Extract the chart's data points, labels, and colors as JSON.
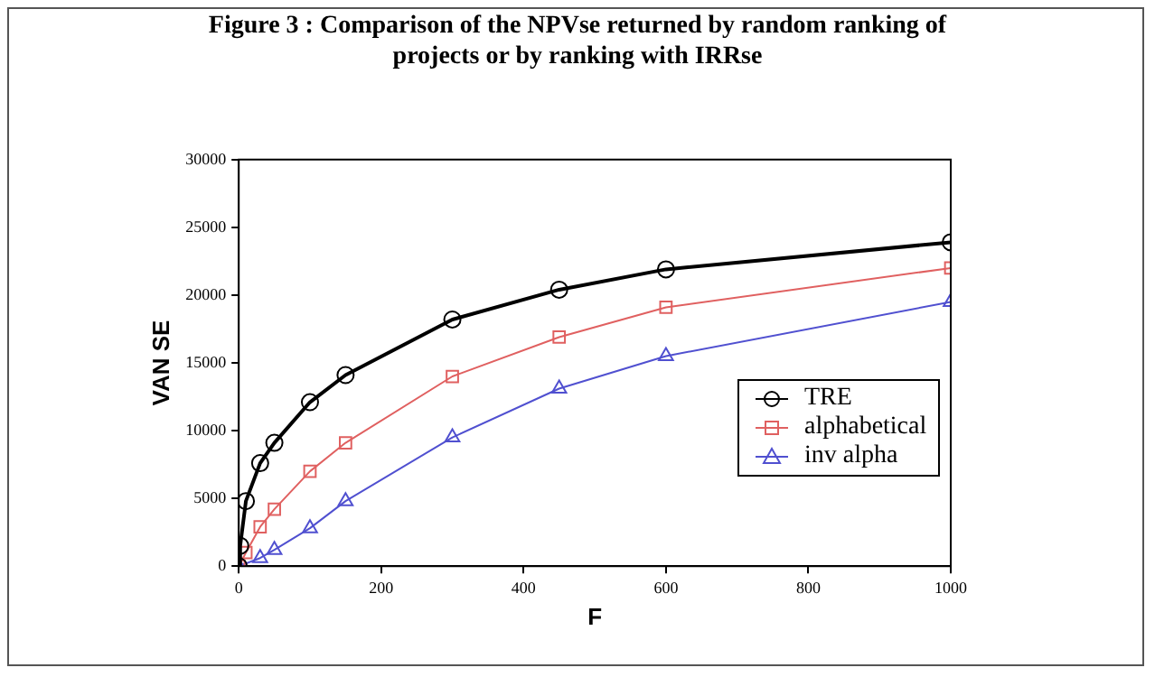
{
  "chart_data": {
    "type": "line",
    "title": "Figure 3 : Comparison of the NPVse returned by random ranking of projects or by ranking with IRRse",
    "xlabel": "F",
    "ylabel": "VAN SE",
    "xlim": [
      0,
      1000
    ],
    "xticks": [
      0,
      200,
      400,
      600,
      800,
      1000
    ],
    "ylim": [
      0,
      30000
    ],
    "yticks": [
      0,
      5000,
      10000,
      15000,
      20000,
      25000,
      30000
    ],
    "grid": false,
    "legend": "bottom right",
    "line_style": "solid",
    "series": [
      {
        "name": "TRE",
        "color": "#000000",
        "marker": "circle",
        "x": [
          0,
          2,
          10,
          30,
          50,
          100,
          150,
          300,
          450,
          600,
          1000
        ],
        "values": [
          0,
          1500,
          4800,
          7600,
          9100,
          12100,
          14100,
          18200,
          20400,
          21900,
          23900
        ]
      },
      {
        "name": "alphabetical",
        "color": "#e06060",
        "marker": "square",
        "x": [
          0,
          10,
          30,
          50,
          100,
          150,
          300,
          450,
          600,
          1000
        ],
        "values": [
          0,
          1000,
          2900,
          4200,
          7000,
          9100,
          14000,
          16900,
          19100,
          22000
        ]
      },
      {
        "name": "inv alpha",
        "color": "#5050d0",
        "marker": "triangle",
        "x": [
          0,
          30,
          50,
          100,
          150,
          300,
          450,
          600,
          1000
        ],
        "values": [
          0,
          600,
          1200,
          2800,
          4800,
          9500,
          13100,
          15500,
          19500
        ]
      }
    ]
  }
}
